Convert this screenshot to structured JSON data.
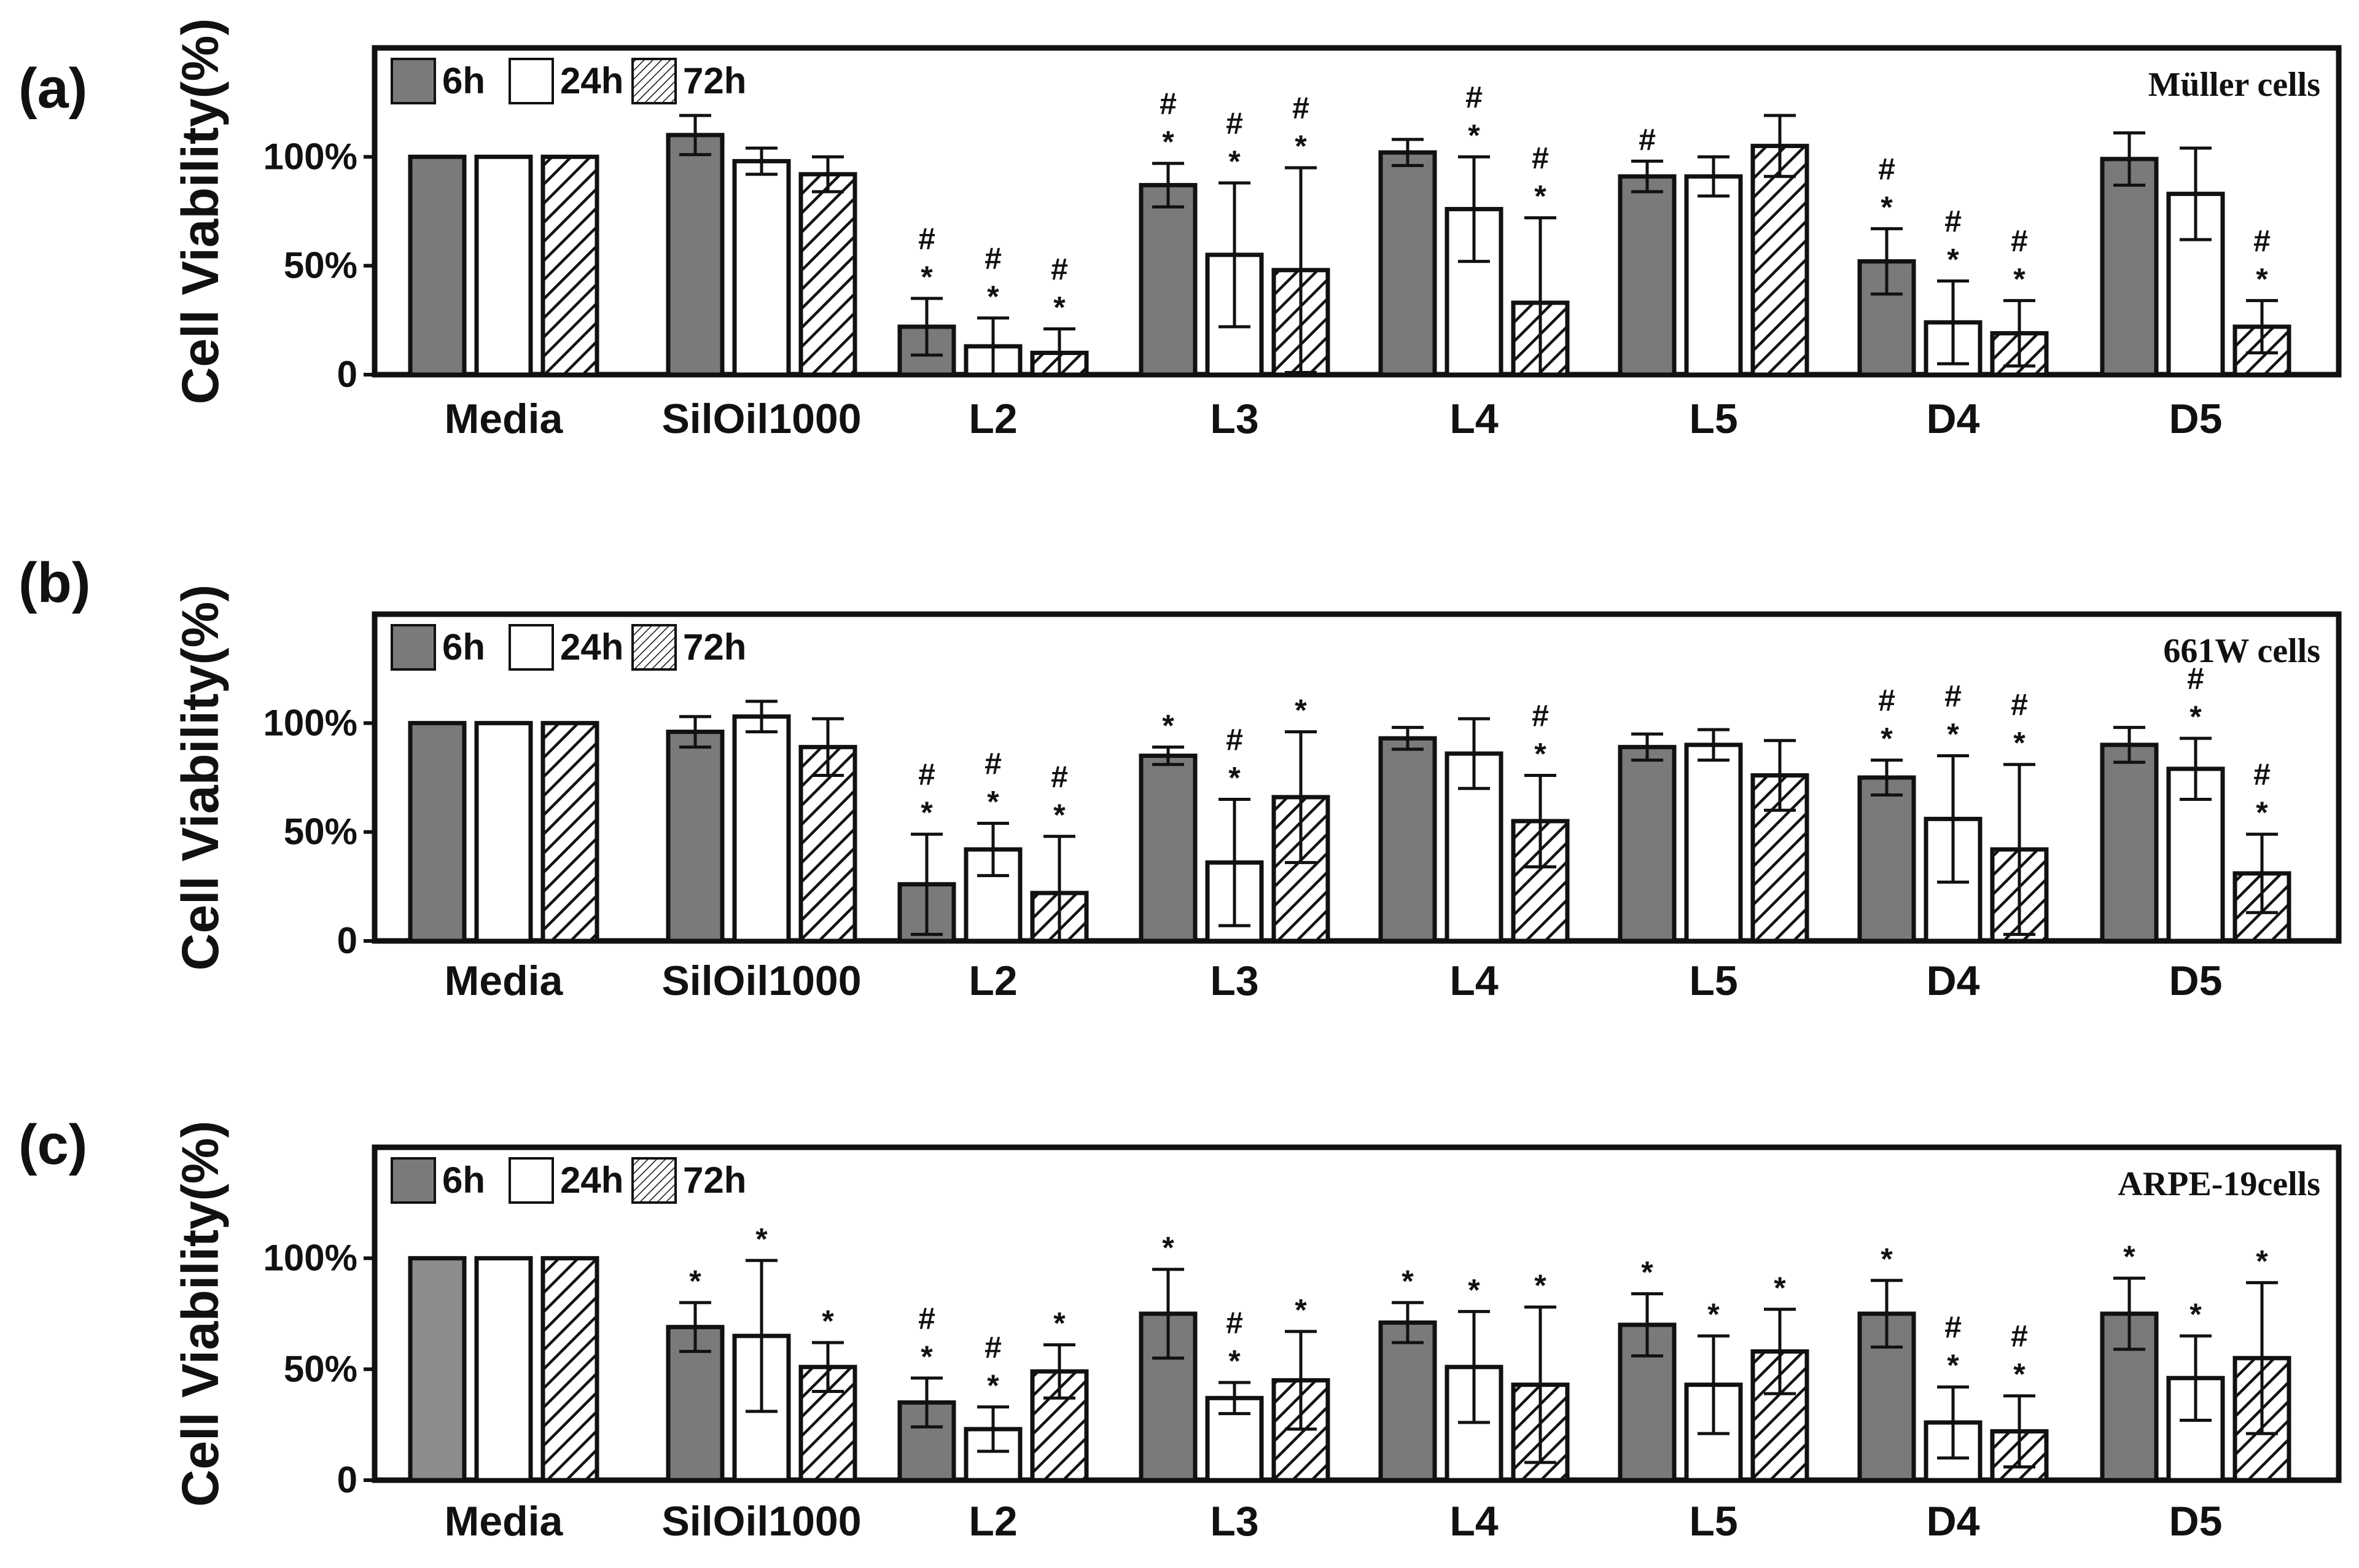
{
  "colors": {
    "h6": "#7a7a7a",
    "h24": "#ffffff",
    "h72_hatch": "#111111",
    "axis": "#111111"
  },
  "chart_data": [
    {
      "type": "bar",
      "panel_label": "(a)",
      "title": "Müller  cells",
      "ylabel": "Cell Viability(%)",
      "ylim": [
        0,
        150
      ],
      "yticks": [
        "0",
        "50%",
        "100%"
      ],
      "legend": [
        "6h",
        "24h",
        "72h"
      ],
      "categories": [
        "Media",
        "SilOil1000",
        "L2",
        "L3",
        "L4",
        "L5",
        "D4",
        "D5"
      ],
      "series": [
        {
          "name": "6h",
          "values": [
            100,
            110,
            22,
            87,
            102,
            91,
            52,
            99
          ],
          "errors": [
            0,
            9,
            13,
            10,
            6,
            7,
            15,
            12
          ],
          "annotations": [
            "",
            "",
            "* #",
            "* #",
            "",
            "#",
            "* #",
            ""
          ]
        },
        {
          "name": "24h",
          "values": [
            100,
            98,
            13,
            55,
            76,
            91,
            24,
            83
          ],
          "errors": [
            0,
            6,
            13,
            33,
            24,
            9,
            19,
            21
          ],
          "annotations": [
            "",
            "",
            "* #",
            "* #",
            "* #",
            "",
            "* #",
            ""
          ]
        },
        {
          "name": "72h",
          "values": [
            100,
            92,
            10,
            48,
            33,
            105,
            19,
            22
          ],
          "errors": [
            0,
            8,
            11,
            47,
            39,
            14,
            15,
            12
          ],
          "annotations": [
            "",
            "",
            "* #",
            "* #",
            "* #",
            "",
            "* #",
            "* #"
          ]
        }
      ]
    },
    {
      "type": "bar",
      "panel_label": "(b)",
      "title": "661W  cells",
      "ylabel": "Cell Viability(%)",
      "ylim": [
        0,
        150
      ],
      "yticks": [
        "0",
        "50%",
        "100%"
      ],
      "legend": [
        "6h",
        "24h",
        "72h"
      ],
      "categories": [
        "Media",
        "SilOil1000",
        "L2",
        "L3",
        "L4",
        "L5",
        "D4",
        "D5"
      ],
      "series": [
        {
          "name": "6h",
          "values": [
            100,
            96,
            26,
            85,
            93,
            89,
            75,
            90
          ],
          "errors": [
            0,
            7,
            23,
            4,
            5,
            6,
            8,
            8
          ],
          "annotations": [
            "",
            "",
            "* #",
            "*",
            "",
            "",
            "* #",
            ""
          ]
        },
        {
          "name": "24h",
          "values": [
            100,
            103,
            42,
            36,
            86,
            90,
            56,
            79
          ],
          "errors": [
            0,
            7,
            12,
            29,
            16,
            7,
            29,
            14
          ],
          "annotations": [
            "",
            "",
            "* #",
            "* #",
            "",
            "",
            "* #",
            "* #"
          ]
        },
        {
          "name": "72h",
          "values": [
            100,
            89,
            22,
            66,
            55,
            76,
            42,
            31
          ],
          "errors": [
            0,
            13,
            26,
            30,
            21,
            16,
            39,
            18
          ],
          "annotations": [
            "",
            "",
            "* #",
            "*",
            "* #",
            "",
            "* #",
            "* #"
          ]
        }
      ]
    },
    {
      "type": "bar",
      "panel_label": "(c)",
      "title": "ARPE-19cells",
      "ylabel": "Cell Viability(%)",
      "ylim": [
        0,
        150
      ],
      "yticks": [
        "0",
        "50%",
        "100%"
      ],
      "legend": [
        "6h",
        "24h",
        "72h"
      ],
      "categories": [
        "Media",
        "SilOil1000",
        "L2",
        "L3",
        "L4",
        "L5",
        "D4",
        "D5"
      ],
      "series": [
        {
          "name": "6h",
          "values": [
            100,
            69,
            35,
            75,
            71,
            70,
            75,
            75
          ],
          "errors": [
            0,
            11,
            11,
            20,
            9,
            14,
            15,
            16
          ],
          "annotations": [
            "",
            "*",
            "* #",
            "*",
            "*",
            "*",
            "*",
            "*"
          ]
        },
        {
          "name": "24h",
          "values": [
            100,
            65,
            23,
            37,
            51,
            43,
            26,
            46
          ],
          "errors": [
            0,
            34,
            10,
            7,
            25,
            22,
            16,
            19
          ],
          "annotations": [
            "",
            "*",
            "* #",
            "* #",
            "*",
            "*",
            "* #",
            "*"
          ]
        },
        {
          "name": "72h",
          "values": [
            100,
            51,
            49,
            45,
            43,
            58,
            22,
            55
          ],
          "errors": [
            0,
            11,
            12,
            22,
            35,
            19,
            16,
            34
          ],
          "annotations": [
            "",
            "*",
            "*",
            "*",
            "*",
            "*",
            "* #",
            "*"
          ]
        }
      ]
    }
  ]
}
